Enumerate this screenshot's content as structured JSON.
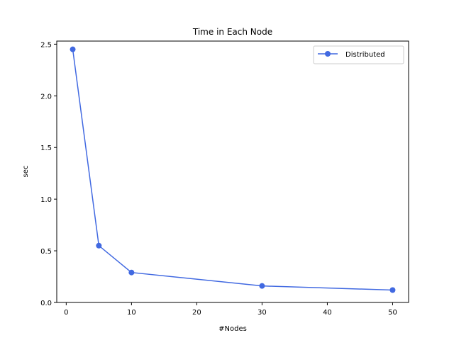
{
  "chart_data": {
    "type": "line",
    "title": "Time in Each Node",
    "xlabel": "#Nodes",
    "ylabel": "sec",
    "xlim": [
      -1.45,
      52.45
    ],
    "ylim": [
      0,
      2.53
    ],
    "xticks": [
      0,
      10,
      20,
      30,
      40,
      50
    ],
    "yticks": [
      0.0,
      0.5,
      1.0,
      1.5,
      2.0,
      2.5
    ],
    "xtick_labels": [
      "0",
      "10",
      "20",
      "30",
      "40",
      "50"
    ],
    "ytick_labels": [
      "0.0",
      "0.5",
      "1.0",
      "1.5",
      "2.0",
      "2.5"
    ],
    "grid": false,
    "legend_position": "top-right",
    "series": [
      {
        "name": "Distributed",
        "color": "#4169e1",
        "marker": "circle",
        "x": [
          1,
          5,
          10,
          30,
          50
        ],
        "y": [
          2.45,
          0.55,
          0.29,
          0.16,
          0.12
        ]
      }
    ]
  }
}
